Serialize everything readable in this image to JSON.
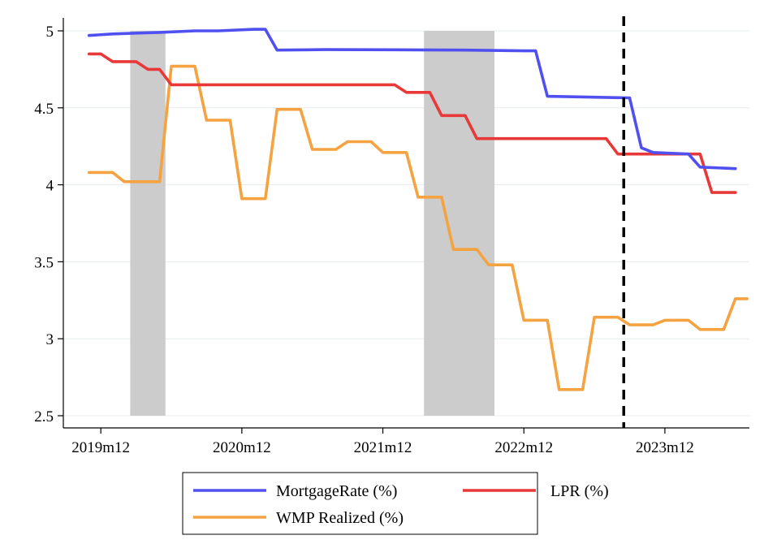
{
  "chart_data": {
    "type": "line",
    "title": "",
    "xlabel": "",
    "ylabel": "",
    "x_axis": {
      "type": "monthly",
      "tick_labels": [
        "2019m12",
        "2020m12",
        "2021m12",
        "2022m12",
        "2023m12"
      ],
      "xlim": [
        "2019m10",
        "2024m06"
      ]
    },
    "y_axis": {
      "ylim": [
        2.5,
        5
      ],
      "ticks": [
        2.5,
        3,
        3.5,
        4,
        4.5,
        5
      ],
      "tick_labels": [
        "2.5",
        "3",
        "3.5",
        "4",
        "4.5",
        "5"
      ],
      "grid": true
    },
    "shaded_periods": [
      {
        "start": "2020m03",
        "end": "2020m05"
      },
      {
        "start": "2022m04",
        "end": "2022m09"
      }
    ],
    "reference_line": {
      "x": "2023m09",
      "style": "dashed"
    },
    "series": [
      {
        "name": "MortgageRate (%)",
        "color": "#5050f0",
        "points": [
          [
            "2019m11",
            4.97
          ],
          [
            "2020m01",
            4.98
          ],
          [
            "2020m03",
            4.985
          ],
          [
            "2020m05",
            4.99
          ],
          [
            "2020m08",
            5.0
          ],
          [
            "2020m10",
            5.0
          ],
          [
            "2021m01",
            5.01
          ],
          [
            "2021m02",
            5.01
          ],
          [
            "2021m03",
            4.875
          ],
          [
            "2021m07",
            4.878
          ],
          [
            "2022m01",
            4.877
          ],
          [
            "2022m07",
            4.875
          ],
          [
            "2022m12",
            4.87
          ],
          [
            "2023m01",
            4.87
          ],
          [
            "2023m02",
            4.575
          ],
          [
            "2023m09",
            4.565
          ],
          [
            "2023m10",
            4.24
          ],
          [
            "2023m11",
            4.21
          ],
          [
            "2024m02",
            4.2
          ],
          [
            "2024m03",
            4.115
          ],
          [
            "2024m06",
            4.105
          ]
        ]
      },
      {
        "name": "LPR (%)",
        "color": "#e83838",
        "points": [
          [
            "2019m11",
            4.85
          ],
          [
            "2019m12",
            4.85
          ],
          [
            "2020m01",
            4.8
          ],
          [
            "2020m02",
            4.8
          ],
          [
            "2020m03",
            4.8
          ],
          [
            "2020m04",
            4.75
          ],
          [
            "2020m05",
            4.75
          ],
          [
            "2020m06",
            4.65
          ],
          [
            "2020m07",
            4.65
          ],
          [
            "2021m08",
            4.65
          ],
          [
            "2022m01",
            4.65
          ],
          [
            "2022m02",
            4.6
          ],
          [
            "2022m03",
            4.6
          ],
          [
            "2022m04",
            4.6
          ],
          [
            "2022m05",
            4.45
          ],
          [
            "2022m06",
            4.45
          ],
          [
            "2022m07",
            4.45
          ],
          [
            "2022m08",
            4.3
          ],
          [
            "2023m05",
            4.3
          ],
          [
            "2023m07",
            4.3
          ],
          [
            "2023m08",
            4.2
          ],
          [
            "2023m12",
            4.2
          ],
          [
            "2024m02",
            4.2
          ],
          [
            "2024m03",
            4.2
          ],
          [
            "2024m04",
            3.95
          ],
          [
            "2024m06",
            3.95
          ]
        ]
      },
      {
        "name": "WMP Realized (%)",
        "color": "#f5a340",
        "points": [
          [
            "2019m11",
            4.08
          ],
          [
            "2019m12",
            4.08
          ],
          [
            "2020m01",
            4.08
          ],
          [
            "2020m02",
            4.02
          ],
          [
            "2020m03",
            4.02
          ],
          [
            "2020m04",
            4.02
          ],
          [
            "2020m05",
            4.02
          ],
          [
            "2020m06",
            4.77
          ],
          [
            "2020m07",
            4.77
          ],
          [
            "2020m08",
            4.77
          ],
          [
            "2020m09",
            4.42
          ],
          [
            "2020m10",
            4.42
          ],
          [
            "2020m11",
            4.42
          ],
          [
            "2020m12",
            3.91
          ],
          [
            "2021m01",
            3.91
          ],
          [
            "2021m02",
            3.91
          ],
          [
            "2021m03",
            4.49
          ],
          [
            "2021m04",
            4.49
          ],
          [
            "2021m05",
            4.49
          ],
          [
            "2021m06",
            4.23
          ],
          [
            "2021m07",
            4.23
          ],
          [
            "2021m08",
            4.23
          ],
          [
            "2021m09",
            4.28
          ],
          [
            "2021m10",
            4.28
          ],
          [
            "2021m11",
            4.28
          ],
          [
            "2021m12",
            4.21
          ],
          [
            "2022m01",
            4.21
          ],
          [
            "2022m02",
            4.21
          ],
          [
            "2022m03",
            3.92
          ],
          [
            "2022m04",
            3.92
          ],
          [
            "2022m05",
            3.92
          ],
          [
            "2022m06",
            3.58
          ],
          [
            "2022m07",
            3.58
          ],
          [
            "2022m08",
            3.58
          ],
          [
            "2022m09",
            3.48
          ],
          [
            "2022m10",
            3.48
          ],
          [
            "2022m11",
            3.48
          ],
          [
            "2022m12",
            3.12
          ],
          [
            "2023m01",
            3.12
          ],
          [
            "2023m02",
            3.12
          ],
          [
            "2023m03",
            2.67
          ],
          [
            "2023m04",
            2.67
          ],
          [
            "2023m05",
            2.67
          ],
          [
            "2023m06",
            3.14
          ],
          [
            "2023m07",
            3.14
          ],
          [
            "2023m08",
            3.14
          ],
          [
            "2023m09",
            3.09
          ],
          [
            "2023m10",
            3.09
          ],
          [
            "2023m11",
            3.09
          ],
          [
            "2023m12",
            3.12
          ],
          [
            "2024m01",
            3.12
          ],
          [
            "2024m02",
            3.12
          ],
          [
            "2024m03",
            3.06
          ],
          [
            "2024m04",
            3.06
          ],
          [
            "2024m05",
            3.06
          ],
          [
            "2024m06",
            3.26
          ],
          [
            "2024m07",
            3.26
          ]
        ]
      }
    ],
    "legend": {
      "placement": "bottom",
      "entries": [
        "MortgageRate (%)",
        "LPR (%)",
        "WMP Realized (%)"
      ]
    }
  }
}
